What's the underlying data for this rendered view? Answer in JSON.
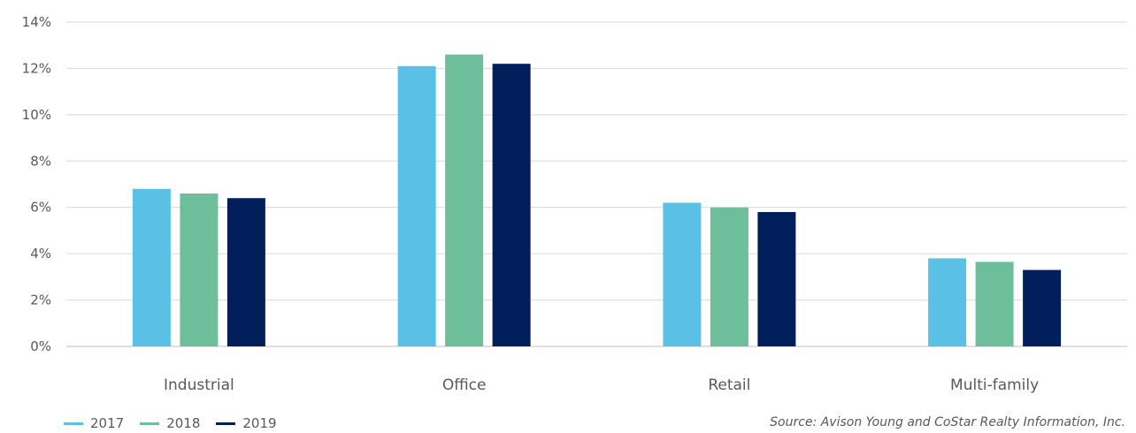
{
  "chart_data": {
    "type": "bar",
    "title": "",
    "xlabel": "",
    "ylabel": "",
    "categories": [
      "Industrial",
      "Office",
      "Retail",
      "Multi-family"
    ],
    "series": [
      {
        "name": "2017",
        "color": "#5bc0e6",
        "values": [
          6.8,
          12.1,
          6.2,
          3.8
        ]
      },
      {
        "name": "2018",
        "color": "#6dbf9c",
        "values": [
          6.6,
          12.6,
          6.0,
          3.65
        ]
      },
      {
        "name": "2019",
        "color": "#001f5b",
        "values": [
          6.4,
          12.2,
          5.8,
          3.3
        ]
      }
    ],
    "ylim": [
      0,
      14
    ],
    "yticks": [
      "0%",
      "2%",
      "4%",
      "6%",
      "8%",
      "10%",
      "12%",
      "14%"
    ],
    "grid": true,
    "legend": "bottom-left",
    "source": "Source: Avison Young and CoStar Realty Information, Inc."
  }
}
